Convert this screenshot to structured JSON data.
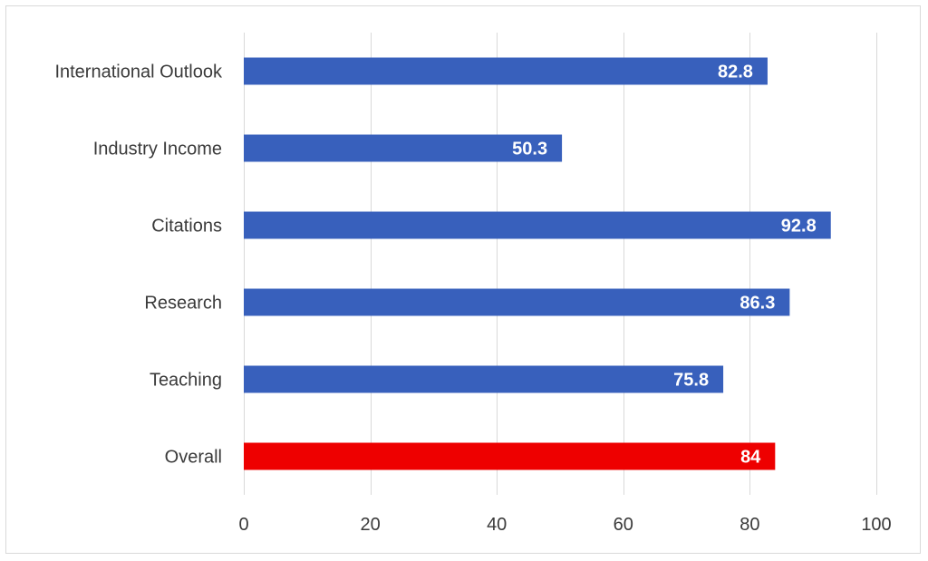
{
  "chart_data": {
    "type": "bar",
    "orientation": "horizontal",
    "categories": [
      "International Outlook",
      "Industry Income",
      "Citations",
      "Research",
      "Teaching",
      "Overall"
    ],
    "values": [
      82.8,
      50.3,
      92.8,
      86.3,
      75.8,
      84
    ],
    "data_labels": [
      "82.8",
      "50.3",
      "92.8",
      "86.3",
      "75.8",
      "84"
    ],
    "bar_colors": [
      "#3860bc",
      "#3860bc",
      "#3860bc",
      "#3860bc",
      "#3860bc",
      "#ee0000"
    ],
    "title": "",
    "xlabel": "",
    "ylabel": "",
    "xlim": [
      0,
      100
    ],
    "x_ticks": [
      0,
      20,
      40,
      60,
      80,
      100
    ],
    "x_tick_labels": [
      "0",
      "20",
      "40",
      "60",
      "80",
      "100"
    ],
    "grid": true,
    "legend": "none"
  }
}
